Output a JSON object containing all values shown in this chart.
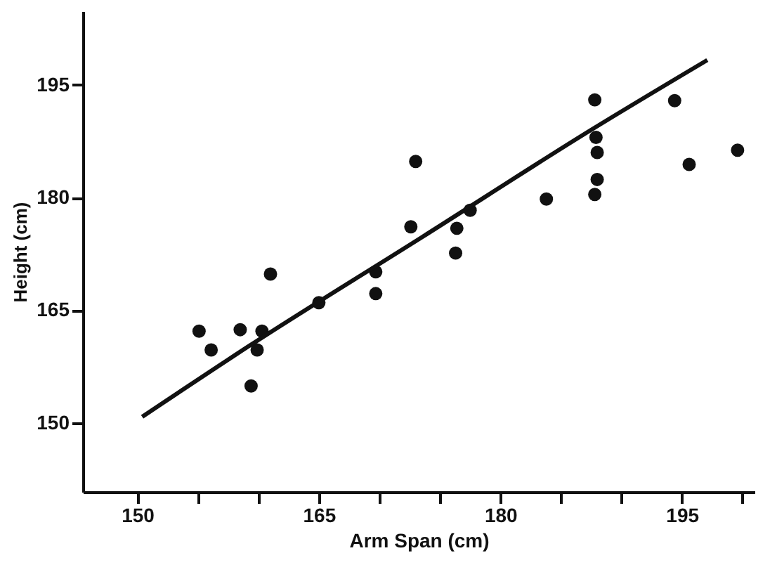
{
  "chart_data": {
    "type": "scatter",
    "xlabel": "Arm Span (cm)",
    "ylabel": "Height (cm)",
    "x": [
      155.1,
      156.1,
      158.5,
      160.3,
      159.9,
      159.4,
      161.0,
      165.0,
      169.7,
      169.7,
      172.6,
      173.0,
      176.3,
      176.4,
      177.5,
      183.8,
      187.8,
      187.9,
      188.0,
      188.0,
      187.8,
      194.4,
      195.6,
      199.6
    ],
    "series": [
      {
        "color": "#111111",
        "marker": "circle",
        "values": [
          162.2,
          159.7,
          162.4,
          162.2,
          159.7,
          154.9,
          169.8,
          166.0,
          170.1,
          167.2,
          176.1,
          184.8,
          172.6,
          175.9,
          178.3,
          179.8,
          193.0,
          188.0,
          186.0,
          182.4,
          180.4,
          192.9,
          184.4,
          186.3
        ]
      },
      {
        "type": "line",
        "color": "#111111",
        "marker": "none",
        "line_style": "solid",
        "x": [
          150.4,
          159.3,
          173.5,
          187.6,
          197.1
        ],
        "values": [
          150.8,
          160.3,
          174.7,
          189.1,
          198.3
        ]
      }
    ],
    "xlim": [
      145.5,
      201
    ],
    "ylim": [
      140.8,
      204.8
    ],
    "xticks": [
      150,
      {
        "value": 155,
        "label": null
      },
      {
        "value": 160,
        "label": null
      },
      165,
      {
        "value": 170,
        "label": null
      },
      {
        "value": 175,
        "label": null
      },
      180,
      {
        "value": 185,
        "label": null
      },
      {
        "value": 190,
        "label": null
      },
      195,
      {
        "value": 200,
        "label": null
      }
    ],
    "yticks": [
      150,
      165,
      180,
      195
    ],
    "grid": false
  }
}
